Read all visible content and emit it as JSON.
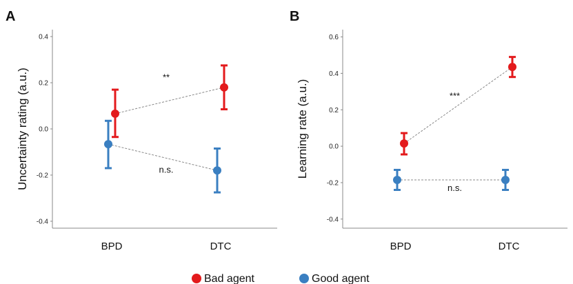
{
  "chart_data": [
    {
      "type": "scatter",
      "panel": "A",
      "categories": [
        "BPD",
        "DTC"
      ],
      "ylabel": "Uncertainty rating (a.u.)",
      "ylim": [
        -0.43,
        0.43
      ],
      "yticks": [
        -0.4,
        -0.2,
        0.0,
        0.2,
        0.4
      ],
      "ytick_labels": [
        "-0.4",
        "-0.2",
        "0.0",
        "0.2",
        "0.4"
      ],
      "series": [
        {
          "name": "Bad agent",
          "color": "#e31a1c",
          "values": [
            0.066,
            0.18
          ],
          "lower": [
            -0.035,
            0.085
          ],
          "upper": [
            0.17,
            0.275
          ]
        },
        {
          "name": "Good agent",
          "color": "#3a7fc1",
          "values": [
            -0.066,
            -0.18
          ],
          "lower": [
            -0.17,
            -0.275
          ],
          "upper": [
            0.035,
            -0.085
          ]
        }
      ],
      "annotations": [
        {
          "text": "**",
          "category": 0.5,
          "y": 0.21
        },
        {
          "text": "n.s.",
          "category": 0.5,
          "y": -0.19
        }
      ]
    },
    {
      "type": "scatter",
      "panel": "B",
      "categories": [
        "BPD",
        "DTC"
      ],
      "ylabel": "Learning rate (a.u.)",
      "ylim": [
        -0.45,
        0.64
      ],
      "yticks": [
        -0.4,
        -0.2,
        0.0,
        0.2,
        0.4,
        0.6
      ],
      "ytick_labels": [
        "-0.4",
        "-0.2",
        "0.0",
        "0.2",
        "0.4",
        "0.6"
      ],
      "series": [
        {
          "name": "Bad agent",
          "color": "#e31a1c",
          "values": [
            0.015,
            0.435
          ],
          "lower": [
            -0.045,
            0.38
          ],
          "upper": [
            0.072,
            0.49
          ]
        },
        {
          "name": "Good agent",
          "color": "#3a7fc1",
          "values": [
            -0.185,
            -0.185
          ],
          "lower": [
            -0.24,
            -0.24
          ],
          "upper": [
            -0.13,
            -0.13
          ]
        }
      ],
      "annotations": [
        {
          "text": "***",
          "category": 0.5,
          "y": 0.26
        },
        {
          "text": "n.s.",
          "category": 0.5,
          "y": -0.245
        }
      ]
    }
  ],
  "legend": [
    {
      "label": "Bad agent",
      "color": "#e31a1c"
    },
    {
      "label": "Good agent",
      "color": "#3a7fc1"
    }
  ]
}
